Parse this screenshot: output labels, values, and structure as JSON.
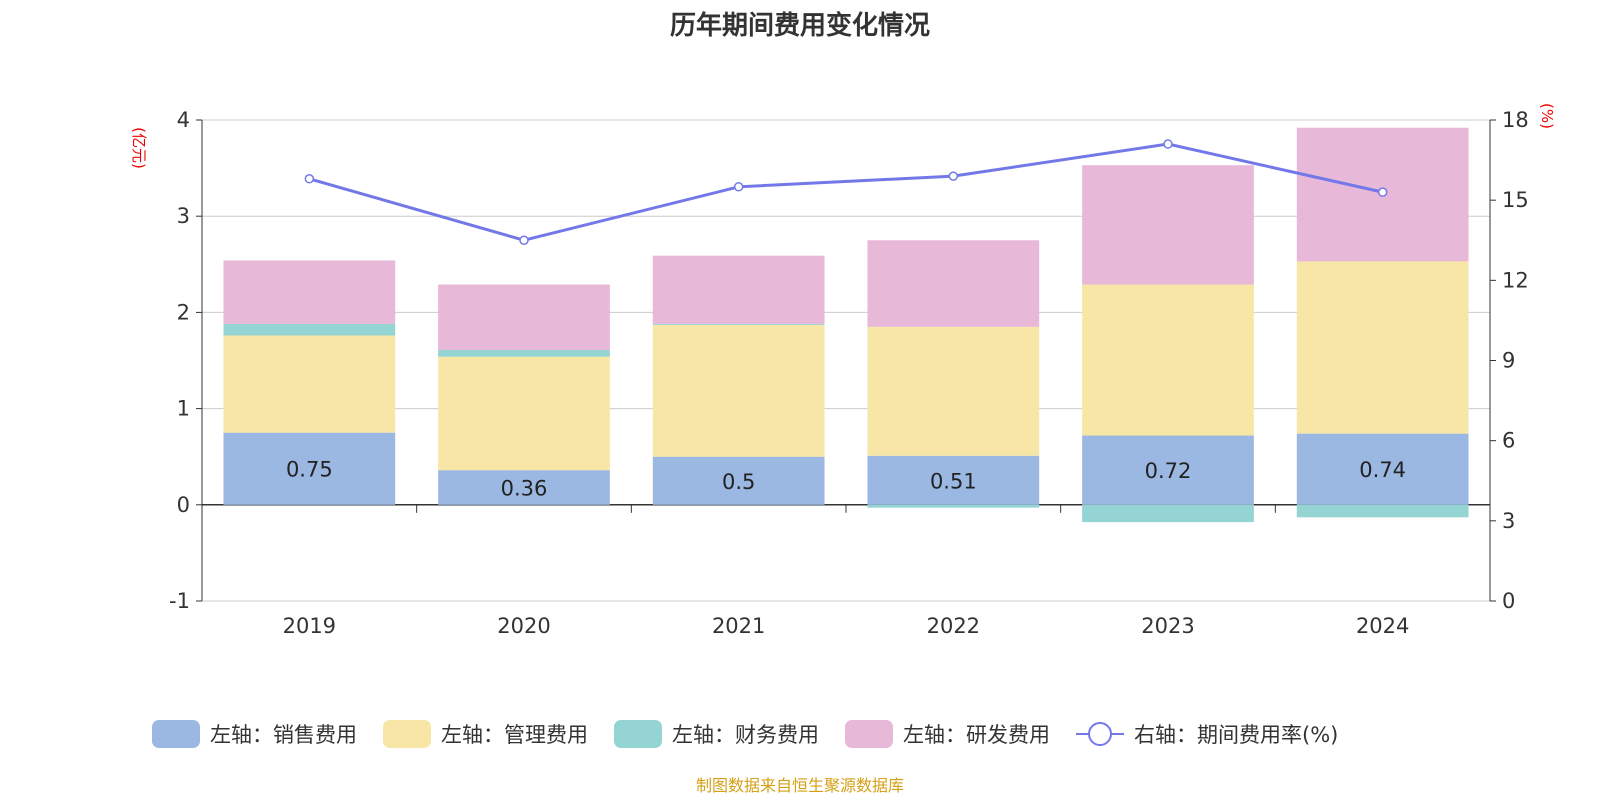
{
  "chart_data": {
    "type": "bar",
    "title": "历年期间费用变化情况",
    "categories": [
      "2019",
      "2020",
      "2021",
      "2022",
      "2023",
      "2024"
    ],
    "y_left": {
      "unit": "(亿元)",
      "ticks": [
        "4",
        "3",
        "2",
        "1",
        "0",
        "-1"
      ],
      "min": -1,
      "max": 4
    },
    "y_right": {
      "unit": "(%)",
      "ticks": [
        "18",
        "15",
        "12",
        "9",
        "6",
        "3",
        "0"
      ],
      "min": 0,
      "max": 18
    },
    "grid": true,
    "legend_position": "bottom",
    "series": [
      {
        "name": "左轴：销售费用",
        "type": "bar",
        "stack": "left",
        "color": "#9bb8e2",
        "values": [
          0.75,
          0.36,
          0.5,
          0.51,
          0.72,
          0.74
        ],
        "labels": [
          "0.75",
          "0.36",
          "0.5",
          "0.51",
          "0.72",
          "0.74"
        ]
      },
      {
        "name": "左轴：管理费用",
        "type": "bar",
        "stack": "left",
        "color": "#f8e6a6",
        "values": [
          1.01,
          1.18,
          1.37,
          1.34,
          1.57,
          1.79
        ]
      },
      {
        "name": "左轴：财务费用",
        "type": "bar",
        "stack": "left",
        "color": "#94d5d4",
        "values": [
          0.12,
          0.07,
          0.01,
          -0.03,
          -0.18,
          -0.13
        ]
      },
      {
        "name": "左轴：研发费用",
        "type": "bar",
        "stack": "left",
        "color": "#e8b8d9",
        "values": [
          0.66,
          0.68,
          0.71,
          0.9,
          1.24,
          1.39
        ]
      },
      {
        "name": "右轴：期间费用率(%)",
        "type": "line",
        "axis": "right",
        "color": "#7378e8",
        "values": [
          15.8,
          13.5,
          15.5,
          15.9,
          17.1,
          15.3
        ]
      }
    ],
    "source": "制图数据来自恒生聚源数据库"
  }
}
